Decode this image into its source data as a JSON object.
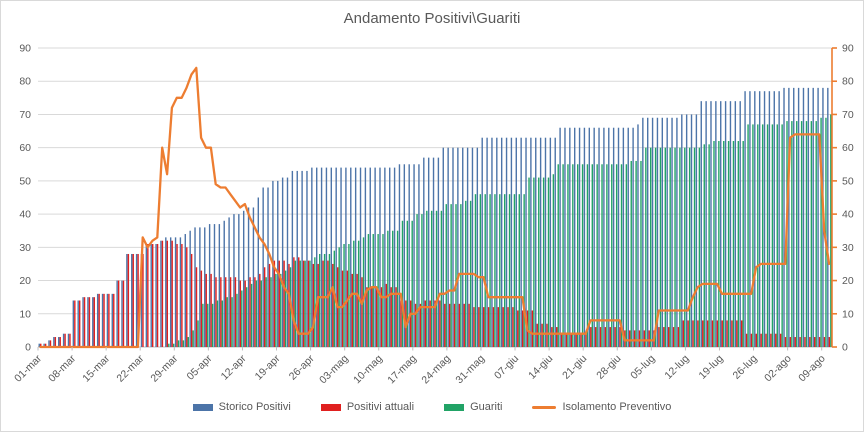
{
  "chart_data": {
    "type": "combo-bar-line",
    "title": "Andamento Positivi\\Guariti",
    "grid": true,
    "legend_position": "bottom",
    "y_left": {
      "min": 0,
      "max": 90,
      "step": 10
    },
    "y_right": {
      "min": 0,
      "max": 90,
      "step": 10
    },
    "x_tick_labels": [
      "01-mar",
      "08-mar",
      "15-mar",
      "22-mar",
      "29-mar",
      "05-apr",
      "12-apr",
      "19-apr",
      "26-apr",
      "03-mag",
      "10-mag",
      "17-mag",
      "24-mag",
      "31-mag",
      "07-giu",
      "14-giu",
      "21-giu",
      "28-giu",
      "05-lug",
      "12-lug",
      "19-lug",
      "26-lug",
      "02-ago",
      "09-ago"
    ],
    "x_granularity": "daily",
    "series": [
      {
        "name": "Storico Positivi",
        "type": "bar",
        "color": "#4C74A8",
        "values": [
          1,
          1,
          2,
          3,
          3,
          4,
          4,
          14,
          14,
          15,
          15,
          15,
          16,
          16,
          16,
          16,
          20,
          20,
          28,
          28,
          28,
          28,
          31,
          31,
          31,
          32,
          33,
          33,
          33,
          33,
          34,
          35,
          36,
          36,
          36,
          37,
          37,
          37,
          38,
          39,
          40,
          40,
          41,
          42,
          42,
          45,
          48,
          48,
          50,
          50,
          51,
          51,
          53,
          53,
          53,
          53,
          54,
          54,
          54,
          54,
          54,
          54,
          54,
          54,
          54,
          54,
          54,
          54,
          54,
          54,
          54,
          54,
          54,
          54,
          55,
          55,
          55,
          55,
          55,
          57,
          57,
          57,
          57,
          60,
          60,
          60,
          60,
          60,
          60,
          60,
          60,
          63,
          63,
          63,
          63,
          63,
          63,
          63,
          63,
          63,
          63,
          63,
          63,
          63,
          63,
          63,
          63,
          66,
          66,
          66,
          66,
          66,
          66,
          66,
          66,
          66,
          66,
          66,
          66,
          66,
          66,
          66,
          66,
          67,
          69,
          69,
          69,
          69,
          69,
          69,
          69,
          69,
          70,
          70,
          70,
          70,
          74,
          74,
          74,
          74,
          74,
          74,
          74,
          74,
          74,
          77,
          77,
          77,
          77,
          77,
          77,
          77,
          77,
          78,
          78,
          78,
          78,
          78,
          78,
          78,
          78,
          78,
          78
        ]
      },
      {
        "name": "Positivi attuali",
        "type": "bar",
        "color": "#E0201F",
        "values": [
          1,
          1,
          2,
          3,
          3,
          4,
          4,
          14,
          14,
          15,
          15,
          15,
          16,
          16,
          16,
          16,
          20,
          20,
          28,
          28,
          28,
          28,
          31,
          31,
          31,
          32,
          32,
          32,
          31,
          31,
          30,
          28,
          24,
          23,
          22,
          22,
          21,
          21,
          21,
          21,
          21,
          20,
          20,
          21,
          21,
          22,
          24,
          25,
          26,
          26,
          26,
          25,
          27,
          27,
          26,
          26,
          25,
          25,
          26,
          26,
          25,
          24,
          23,
          23,
          22,
          22,
          21,
          18,
          18,
          18,
          18,
          19,
          18,
          18,
          14,
          14,
          14,
          13,
          13,
          14,
          14,
          14,
          14,
          13,
          13,
          13,
          13,
          13,
          13,
          12,
          12,
          12,
          12,
          12,
          12,
          12,
          12,
          12,
          11,
          11,
          11,
          11,
          7,
          7,
          7,
          6,
          6,
          4,
          4,
          4,
          4,
          4,
          4,
          6,
          6,
          6,
          6,
          6,
          6,
          6,
          5,
          5,
          5,
          5,
          5,
          5,
          5,
          6,
          6,
          6,
          6,
          6,
          8,
          8,
          8,
          8,
          8,
          8,
          8,
          8,
          8,
          8,
          8,
          8,
          8,
          4,
          4,
          4,
          4,
          4,
          4,
          4,
          4,
          3,
          3,
          3,
          3,
          3,
          3,
          3,
          3,
          3,
          3
        ]
      },
      {
        "name": "Guariti",
        "type": "bar",
        "color": "#21A366",
        "values": [
          0,
          0,
          0,
          0,
          0,
          0,
          0,
          0,
          0,
          0,
          0,
          0,
          0,
          0,
          0,
          0,
          0,
          0,
          0,
          0,
          0,
          0,
          0,
          0,
          0,
          0,
          1,
          1,
          2,
          2,
          3,
          5,
          8,
          13,
          13,
          13,
          14,
          14,
          15,
          15,
          16,
          17,
          18,
          19,
          20,
          20,
          21,
          21,
          22,
          22,
          23,
          24,
          26,
          26,
          26,
          26,
          27,
          28,
          28,
          28,
          29,
          30,
          31,
          31,
          32,
          32,
          33,
          34,
          34,
          34,
          34,
          35,
          35,
          35,
          38,
          38,
          38,
          40,
          40,
          41,
          41,
          41,
          41,
          43,
          43,
          43,
          43,
          44,
          44,
          46,
          46,
          46,
          46,
          46,
          46,
          46,
          46,
          46,
          46,
          46,
          51,
          51,
          51,
          51,
          51,
          52,
          55,
          55,
          55,
          55,
          55,
          55,
          55,
          55,
          55,
          55,
          55,
          55,
          55,
          55,
          55,
          56,
          56,
          56,
          60,
          60,
          60,
          60,
          60,
          60,
          60,
          60,
          60,
          60,
          60,
          60,
          61,
          61,
          62,
          62,
          62,
          62,
          62,
          62,
          62,
          67,
          67,
          67,
          67,
          67,
          67,
          67,
          67,
          68,
          68,
          68,
          68,
          68,
          68,
          68,
          69,
          69,
          70
        ]
      },
      {
        "name": "Isolamento Preventivo",
        "type": "line",
        "axis": "right",
        "color": "#ED7D31",
        "values": [
          0,
          0,
          0,
          0,
          0,
          0,
          0,
          0,
          0,
          0,
          0,
          0,
          0,
          0,
          0,
          0,
          0,
          0,
          0,
          0,
          0,
          33,
          30,
          32,
          33,
          60,
          52,
          72,
          75,
          75,
          78,
          82,
          84,
          63,
          60,
          60,
          49,
          48,
          48,
          46,
          44,
          42,
          43,
          39,
          36,
          33,
          31,
          28,
          24,
          22,
          18,
          16,
          8,
          4,
          4,
          4,
          6,
          15,
          15,
          15,
          18,
          12,
          12,
          14,
          16,
          16,
          13,
          17,
          18,
          18,
          15,
          15,
          16,
          16,
          16,
          6,
          10,
          10,
          12,
          12,
          12,
          12,
          16,
          16,
          17,
          17,
          22,
          22,
          22,
          22,
          21,
          21,
          15,
          15,
          15,
          15,
          15,
          15,
          15,
          15,
          5,
          4,
          4,
          4,
          4,
          4,
          4,
          4,
          4,
          4,
          4,
          4,
          4,
          8,
          8,
          8,
          8,
          8,
          8,
          8,
          2,
          2,
          2,
          2,
          2,
          2,
          2,
          11,
          11,
          11,
          11,
          11,
          11,
          11,
          15,
          18,
          19,
          19,
          19,
          19,
          16,
          16,
          16,
          16,
          16,
          16,
          16,
          24,
          25,
          25,
          25,
          25,
          25,
          25,
          63,
          64,
          64,
          64,
          64,
          64,
          64,
          35,
          25
        ]
      }
    ],
    "colors": {
      "gridline": "#D9D9D9",
      "axis_line": "#BFBFBF",
      "right_axis_line": "#ED7D31",
      "text": "#595959",
      "background": "#FFFFFF"
    }
  }
}
